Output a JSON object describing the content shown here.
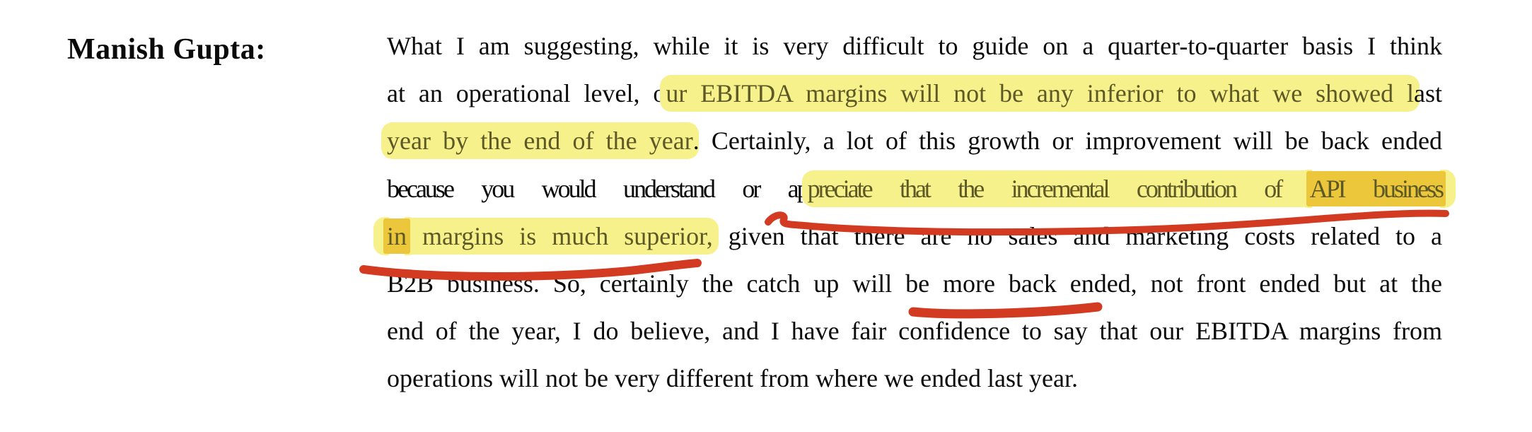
{
  "page": {
    "background": "#ffffff"
  },
  "colors": {
    "highlight_yellow": "#f6f18b",
    "highlight_amber": "#ecc73c",
    "marker_red": "#d23b21",
    "text": "#0a0a0a",
    "highlighted_text": "#5d5926"
  },
  "transcript": {
    "speaker": "Manish Gupta:",
    "lines": [
      {
        "segments": [
          {
            "t": "What I am suggesting, while it is very difficult to guide on a quarter-to-quarter basis I think"
          }
        ]
      },
      {
        "segments": [
          {
            "t": "at an operational level, o"
          },
          {
            "t": "ur EBITDA margins will not be any inferior to what we showed l",
            "h": "y"
          },
          {
            "t": "ast"
          }
        ]
      },
      {
        "segments": [
          {
            "t": "year by the end of the year",
            "h": "y"
          },
          {
            "t": ". Certainly, a lot of this growth or improvement will be back ended"
          }
        ]
      },
      {
        "segments": [
          {
            "t": "because you would understand or ap"
          },
          {
            "t": "preciate that the incremental contribution of ",
            "h": "y"
          },
          {
            "t": "API business",
            "h": "a"
          }
        ]
      },
      {
        "segments": [
          {
            "t": "in",
            "h": "a"
          },
          {
            "t": " margins is much superior,",
            "h": "y"
          },
          {
            "t": " given that there are no sales and marketing costs related to a"
          }
        ]
      },
      {
        "segments": [
          {
            "t": "B2B business. So, certainly the catch up will be more back ended, not front ended but at the"
          }
        ]
      },
      {
        "segments": [
          {
            "t": "end of the year, I do believe, and I have fair confidence to say that our EBITDA margins from"
          }
        ]
      },
      {
        "segments": [
          {
            "t": "operations will not be very different from where we ended last year."
          }
        ]
      }
    ]
  },
  "annotations": {
    "underlines": [
      {
        "name": "underline-incremental-contribution",
        "under_text": "preciate that the incremental contribution of API business",
        "color": "#d23b21"
      },
      {
        "name": "underline-margins-superior",
        "under_text": "in margins is much superior",
        "color": "#d23b21"
      },
      {
        "name": "underline-back-ended",
        "under_text": "be more back ended",
        "color": "#d23b21"
      }
    ]
  }
}
